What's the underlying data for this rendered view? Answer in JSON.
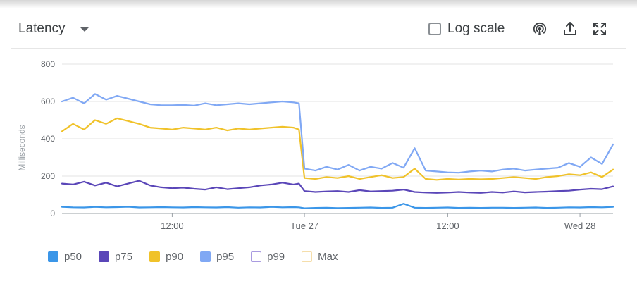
{
  "header": {
    "metric_label": "Latency",
    "log_scale_label": "Log scale",
    "log_scale_checked": false,
    "icons": [
      "tap-icon",
      "upload-icon",
      "expand-icon"
    ]
  },
  "colors": {
    "p50": "#3b96e8",
    "p75": "#5a46b8",
    "p90": "#f0c22a",
    "p95": "#80a8f4",
    "p99": "#a99be0",
    "max": "#f5deab",
    "grid": "#e3e3e3",
    "axis_text": "#5f6368"
  },
  "chart_data": {
    "type": "line",
    "ylabel": "Milliseconds",
    "ylim": [
      0,
      800
    ],
    "yticks": [
      0,
      200,
      400,
      600,
      800
    ],
    "xlim": [
      0,
      50
    ],
    "xlabels": [
      {
        "x": 10,
        "label": "12:00"
      },
      {
        "x": 22,
        "label": "Tue 27"
      },
      {
        "x": 35,
        "label": "12:00"
      },
      {
        "x": 47,
        "label": "Wed 28"
      }
    ],
    "grid": true,
    "legend_position": "bottom-left",
    "x": [
      0,
      1,
      2,
      3,
      4,
      5,
      6,
      7,
      8,
      9,
      10,
      11,
      12,
      13,
      14,
      15,
      16,
      17,
      18,
      19,
      20,
      21,
      21.5,
      22,
      23,
      24,
      25,
      26,
      27,
      28,
      29,
      30,
      31,
      32,
      33,
      34,
      35,
      36,
      37,
      38,
      39,
      40,
      41,
      42,
      43,
      44,
      45,
      46,
      47,
      48,
      49,
      50
    ],
    "series": [
      {
        "name": "p50",
        "values": [
          35,
          33,
          32,
          35,
          33,
          34,
          36,
          32,
          33,
          34,
          33,
          32,
          34,
          33,
          32,
          34,
          31,
          33,
          32,
          35,
          33,
          34,
          33,
          28,
          30,
          31,
          29,
          30,
          31,
          32,
          30,
          31,
          52,
          31,
          30,
          31,
          32,
          30,
          31,
          30,
          31,
          31,
          30,
          31,
          32,
          30,
          31,
          33,
          32,
          34,
          33,
          35
        ]
      },
      {
        "name": "p75",
        "values": [
          160,
          155,
          170,
          150,
          165,
          145,
          160,
          175,
          150,
          140,
          135,
          138,
          132,
          128,
          140,
          130,
          135,
          140,
          150,
          155,
          165,
          155,
          160,
          120,
          115,
          118,
          120,
          115,
          125,
          118,
          120,
          122,
          128,
          115,
          112,
          110,
          112,
          115,
          112,
          110,
          115,
          112,
          118,
          113,
          115,
          117,
          120,
          122,
          128,
          132,
          130,
          145
        ]
      },
      {
        "name": "p90",
        "values": [
          440,
          480,
          450,
          500,
          480,
          510,
          495,
          480,
          460,
          455,
          450,
          460,
          455,
          450,
          460,
          445,
          455,
          450,
          455,
          460,
          465,
          460,
          450,
          190,
          185,
          195,
          190,
          200,
          185,
          195,
          205,
          190,
          195,
          240,
          185,
          180,
          185,
          182,
          185,
          183,
          185,
          190,
          195,
          190,
          185,
          195,
          200,
          210,
          205,
          220,
          195,
          235
        ]
      },
      {
        "name": "p95",
        "values": [
          600,
          620,
          590,
          640,
          610,
          630,
          615,
          600,
          585,
          580,
          580,
          582,
          578,
          590,
          580,
          585,
          590,
          585,
          590,
          595,
          600,
          595,
          590,
          240,
          230,
          250,
          235,
          260,
          230,
          250,
          240,
          270,
          245,
          350,
          230,
          225,
          220,
          218,
          225,
          230,
          225,
          235,
          240,
          230,
          235,
          240,
          245,
          270,
          250,
          300,
          265,
          370
        ]
      }
    ]
  },
  "legend": {
    "items": [
      {
        "name": "p50",
        "label": "p50",
        "filled": true
      },
      {
        "name": "p75",
        "label": "p75",
        "filled": true
      },
      {
        "name": "p90",
        "label": "p90",
        "filled": true
      },
      {
        "name": "p95",
        "label": "p95",
        "filled": true
      },
      {
        "name": "p99",
        "label": "p99",
        "filled": false
      },
      {
        "name": "max",
        "label": "Max",
        "filled": false
      }
    ]
  }
}
